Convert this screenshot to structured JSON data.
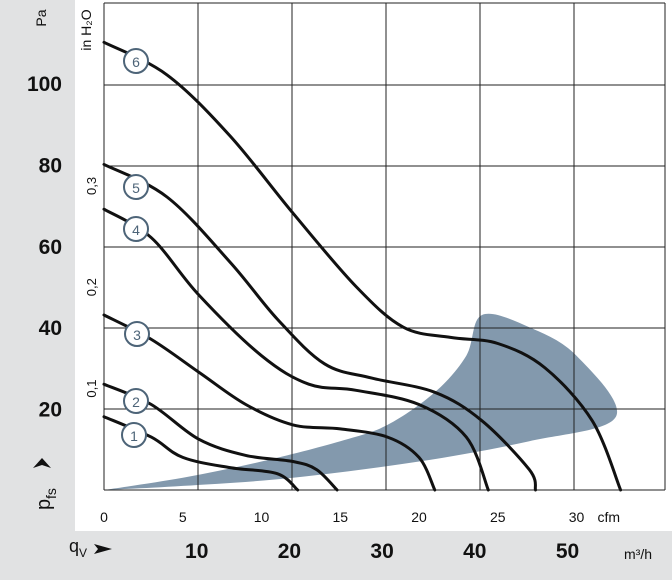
{
  "chart_data": {
    "type": "line",
    "y_axis_primary": {
      "unit": "Pa",
      "ticks": [
        "20",
        "40",
        "60",
        "80",
        "100"
      ],
      "range": [
        0,
        115
      ]
    },
    "y_axis_secondary": {
      "unit": "in H₂O",
      "ticks": [
        "0,1",
        "0,2",
        "0,3"
      ]
    },
    "y_label": "p",
    "y_label_sub": "fs",
    "x_axis_primary": {
      "unit": "cfm",
      "ticks": [
        "0",
        "5",
        "10",
        "15",
        "20",
        "25",
        "30"
      ],
      "range": [
        0,
        35
      ]
    },
    "x_axis_secondary": {
      "unit": "m³/h",
      "ticks": [
        "10",
        "20",
        "30",
        "40",
        "50"
      ]
    },
    "x_label": "q",
    "x_label_sub": "V",
    "series": [
      {
        "name": "1",
        "points": [
          [
            0,
            18
          ],
          [
            3,
            13
          ],
          [
            5,
            8
          ],
          [
            8,
            5.5
          ],
          [
            11,
            4
          ],
          [
            12.3,
            0
          ]
        ]
      },
      {
        "name": "2",
        "points": [
          [
            0,
            26
          ],
          [
            3,
            21
          ],
          [
            6,
            12.5
          ],
          [
            9,
            8.5
          ],
          [
            12,
            7
          ],
          [
            13.5,
            5
          ],
          [
            14.8,
            0
          ]
        ]
      },
      {
        "name": "3",
        "points": [
          [
            0,
            43
          ],
          [
            3,
            37
          ],
          [
            6,
            29
          ],
          [
            9,
            21
          ],
          [
            12,
            16
          ],
          [
            15,
            15
          ],
          [
            18,
            13
          ],
          [
            20,
            8
          ],
          [
            21,
            0
          ]
        ]
      },
      {
        "name": "4",
        "points": [
          [
            0,
            69
          ],
          [
            3,
            62
          ],
          [
            6,
            48
          ],
          [
            10,
            33
          ],
          [
            13,
            26
          ],
          [
            16,
            24.5
          ],
          [
            20,
            21
          ],
          [
            23,
            13
          ],
          [
            24.4,
            0
          ]
        ]
      },
      {
        "name": "5",
        "points": [
          [
            0,
            80
          ],
          [
            4,
            72
          ],
          [
            8,
            56
          ],
          [
            11,
            42
          ],
          [
            14,
            31
          ],
          [
            17,
            27.5
          ],
          [
            21,
            24
          ],
          [
            24,
            17
          ],
          [
            27,
            5
          ],
          [
            27.4,
            0
          ]
        ]
      },
      {
        "name": "6",
        "points": [
          [
            0,
            110
          ],
          [
            4,
            102
          ],
          [
            8,
            87
          ],
          [
            12,
            68
          ],
          [
            16,
            50
          ],
          [
            19,
            40
          ],
          [
            22,
            37.5
          ],
          [
            25,
            36
          ],
          [
            28,
            30
          ],
          [
            31,
            17
          ],
          [
            32.8,
            0
          ]
        ]
      }
    ],
    "shaded_region": {
      "label": "",
      "points": [
        [
          0,
          0
        ],
        [
          5,
          3
        ],
        [
          10,
          7
        ],
        [
          15,
          12
        ],
        [
          18,
          16
        ],
        [
          21,
          24
        ],
        [
          23,
          33
        ],
        [
          24,
          43
        ],
        [
          27,
          40
        ],
        [
          30,
          33
        ],
        [
          32.5,
          18
        ],
        [
          27,
          12
        ],
        [
          20,
          7
        ],
        [
          12,
          3
        ],
        [
          5,
          1
        ],
        [
          0,
          0
        ]
      ]
    }
  },
  "colors": {
    "panel": "#e1e2e3",
    "region": "#8399ad",
    "curve": "#111111",
    "marker": "#4d6478"
  }
}
